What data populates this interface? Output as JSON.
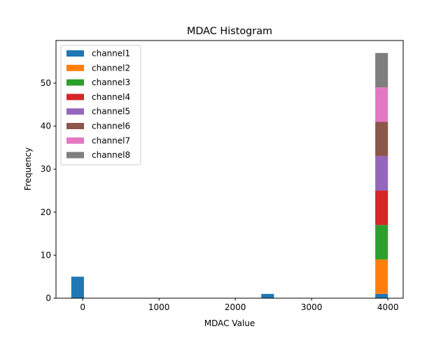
{
  "chart_data": {
    "type": "bar",
    "stacked": true,
    "title": "MDAC Histogram",
    "xlabel": "MDAC Value",
    "ylabel": "Frequency",
    "xlim": [
      -350,
      4200
    ],
    "ylim": [
      0,
      59.9
    ],
    "xticks": [
      0,
      1000,
      2000,
      3000,
      4000
    ],
    "xtick_labels": [
      "0",
      "1000",
      "2000",
      "3000",
      "4000"
    ],
    "yticks": [
      0,
      10,
      20,
      30,
      40,
      50
    ],
    "ytick_labels": [
      "0",
      "10",
      "20",
      "30",
      "40",
      "50"
    ],
    "bins": 25,
    "bin_start": -150,
    "bin_width": 166,
    "legend_position": "upper-left",
    "series": [
      {
        "name": "channel1",
        "color": "#1f77b4",
        "bars": [
          {
            "bin": 0,
            "value": 5
          },
          {
            "bin": 15,
            "value": 1
          },
          {
            "bin": 24,
            "value": 1
          }
        ]
      },
      {
        "name": "channel2",
        "color": "#ff7f0e",
        "bars": [
          {
            "bin": 24,
            "value": 8
          }
        ]
      },
      {
        "name": "channel3",
        "color": "#2ca02c",
        "bars": [
          {
            "bin": 24,
            "value": 8
          }
        ]
      },
      {
        "name": "channel4",
        "color": "#d62728",
        "bars": [
          {
            "bin": 24,
            "value": 8
          }
        ]
      },
      {
        "name": "channel5",
        "color": "#9467bd",
        "bars": [
          {
            "bin": 24,
            "value": 8
          }
        ]
      },
      {
        "name": "channel6",
        "color": "#8c564b",
        "bars": [
          {
            "bin": 24,
            "value": 8
          }
        ]
      },
      {
        "name": "channel7",
        "color": "#e377c2",
        "bars": [
          {
            "bin": 24,
            "value": 8
          }
        ]
      },
      {
        "name": "channel8",
        "color": "#7f7f7f",
        "bars": [
          {
            "bin": 24,
            "value": 8
          }
        ]
      }
    ]
  }
}
